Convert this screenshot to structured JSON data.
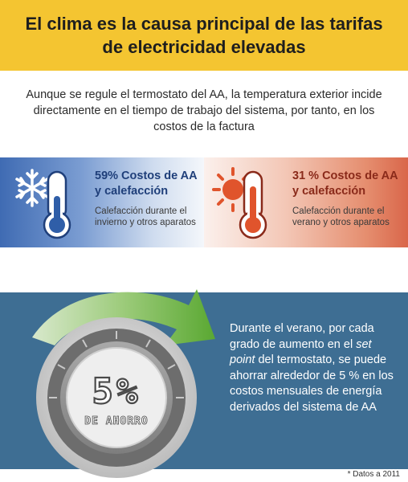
{
  "header": {
    "title": "El clima es la causa principal de las tarifas de electricidad elevadas"
  },
  "intro": {
    "text": "Aunque se regule el termostato del AA, la temperatura exterior incide directamente en el tiempo de trabajo del sistema, por tanto, en los costos de la factura"
  },
  "winter": {
    "percent_label": "59% Costos de AA y calefacción",
    "description": "Calefacción durante el invierno y otros aparatos",
    "icon": "snowflake-thermometer-icon",
    "color": "#3f6bb3"
  },
  "summer": {
    "percent_label": "31 % Costos de AA y calefacción",
    "description": "Calefacción durante el verano y otros aparatos",
    "icon": "sun-thermometer-icon",
    "color": "#d9664a"
  },
  "savings": {
    "big_value": "5%",
    "caption": "DE AHORRO",
    "text_before": "Durante el verano, por cada grado de aumento en el ",
    "text_emphasis": "set point",
    "text_after": " del termostato, se puede ahorrar alrededor de 5 % en los costos mensuales de energía derivados del sistema de AA",
    "arrow_color": "#6cb33f",
    "panel_color": "#3e6e93"
  },
  "footnote": "* Datos a 2011"
}
